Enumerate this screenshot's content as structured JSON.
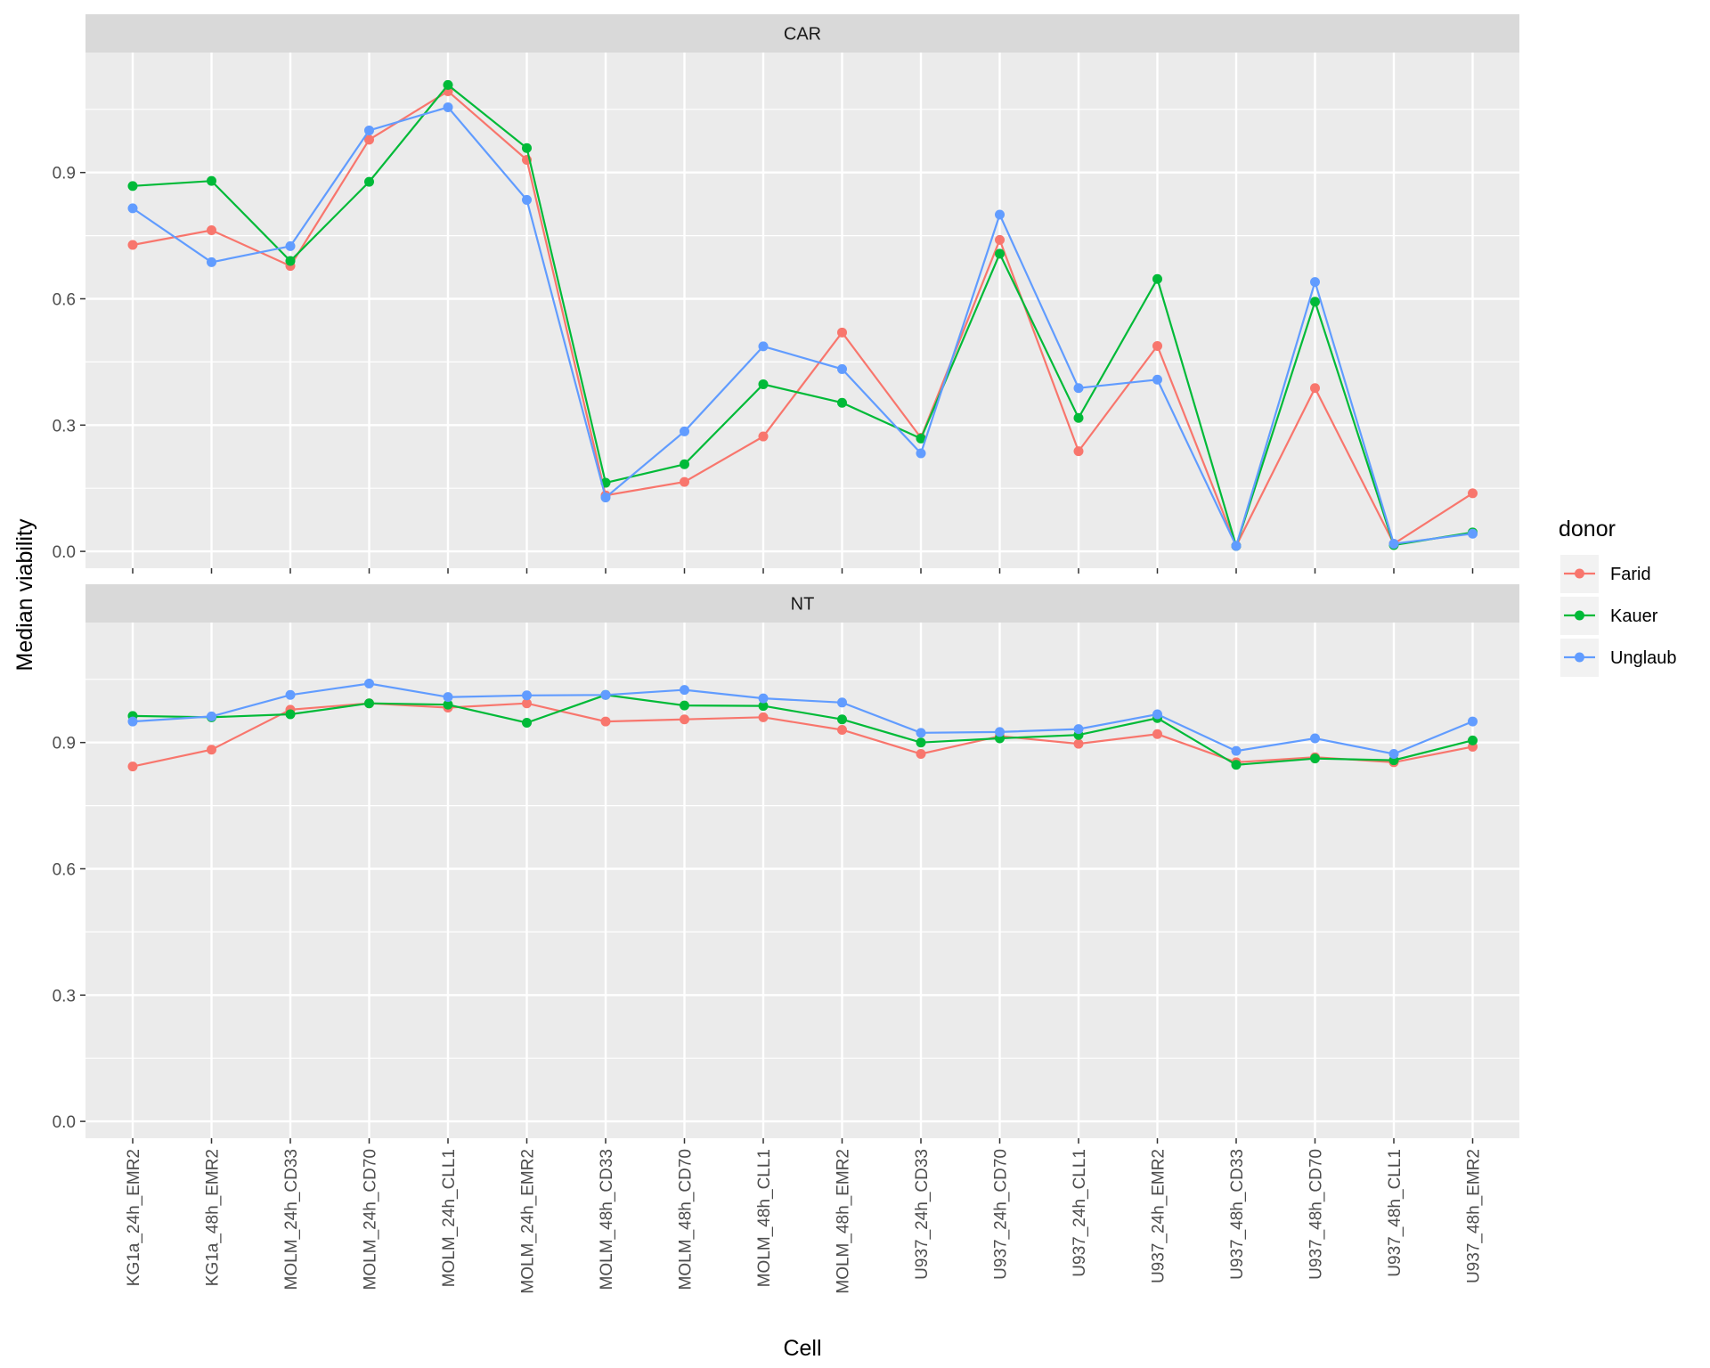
{
  "chart_data": {
    "type": "line",
    "xlabel": "Cell",
    "ylabel": "Median viability",
    "ylim": [
      -0.04,
      1.185
    ],
    "y_ticks": [
      0.0,
      0.3,
      0.6,
      0.9
    ],
    "y_tick_labels": [
      "0.0",
      "0.3",
      "0.6",
      "0.9"
    ],
    "grid": true,
    "legend": {
      "title": "donor",
      "position": "right"
    },
    "categories": [
      "KG1a_24h_EMR2",
      "KG1a_48h_EMR2",
      "MOLM_24h_CD33",
      "MOLM_24h_CD70",
      "MOLM_24h_CLL1",
      "MOLM_24h_EMR2",
      "MOLM_48h_CD33",
      "MOLM_48h_CD70",
      "MOLM_48h_CLL1",
      "MOLM_48h_EMR2",
      "U937_24h_CD33",
      "U937_24h_CD70",
      "U937_24h_CLL1",
      "U937_24h_EMR2",
      "U937_48h_CD33",
      "U937_48h_CD70",
      "U937_48h_CLL1",
      "U937_48h_EMR2"
    ],
    "panels": [
      {
        "label": "CAR",
        "series": [
          {
            "name": "Farid",
            "color": "#F8766D",
            "values": [
              0.728,
              0.763,
              0.678,
              0.978,
              1.093,
              0.93,
              0.133,
              0.165,
              0.273,
              0.52,
              0.27,
              0.74,
              0.238,
              0.488,
              0.013,
              0.388,
              0.018,
              0.138
            ]
          },
          {
            "name": "Kauer",
            "color": "#00BA38",
            "values": [
              0.868,
              0.88,
              0.69,
              0.878,
              1.108,
              0.958,
              0.163,
              0.207,
              0.397,
              0.353,
              0.268,
              0.707,
              0.317,
              0.647,
              0.013,
              0.593,
              0.015,
              0.045
            ]
          },
          {
            "name": "Unglaub",
            "color": "#619CFF",
            "values": [
              0.815,
              0.687,
              0.725,
              1.0,
              1.055,
              0.835,
              0.128,
              0.285,
              0.487,
              0.433,
              0.233,
              0.8,
              0.388,
              0.408,
              0.013,
              0.64,
              0.018,
              0.042
            ]
          }
        ]
      },
      {
        "label": "NT",
        "series": [
          {
            "name": "Farid",
            "color": "#F8766D",
            "values": [
              0.843,
              0.883,
              0.978,
              0.993,
              0.983,
              0.993,
              0.95,
              0.955,
              0.96,
              0.93,
              0.873,
              0.915,
              0.897,
              0.92,
              0.853,
              0.865,
              0.853,
              0.89
            ]
          },
          {
            "name": "Kauer",
            "color": "#00BA38",
            "values": [
              0.963,
              0.96,
              0.967,
              0.993,
              0.99,
              0.947,
              1.013,
              0.988,
              0.987,
              0.955,
              0.9,
              0.91,
              0.918,
              0.958,
              0.847,
              0.862,
              0.858,
              0.905
            ]
          },
          {
            "name": "Unglaub",
            "color": "#619CFF",
            "values": [
              0.95,
              0.962,
              1.013,
              1.04,
              1.008,
              1.012,
              1.013,
              1.025,
              1.005,
              0.995,
              0.923,
              0.925,
              0.932,
              0.967,
              0.88,
              0.91,
              0.873,
              0.95
            ]
          }
        ]
      }
    ]
  },
  "colors": {
    "panel_bg": "#EBEBEB",
    "strip_bg": "#D9D9D9",
    "grid": "#FFFFFF"
  }
}
